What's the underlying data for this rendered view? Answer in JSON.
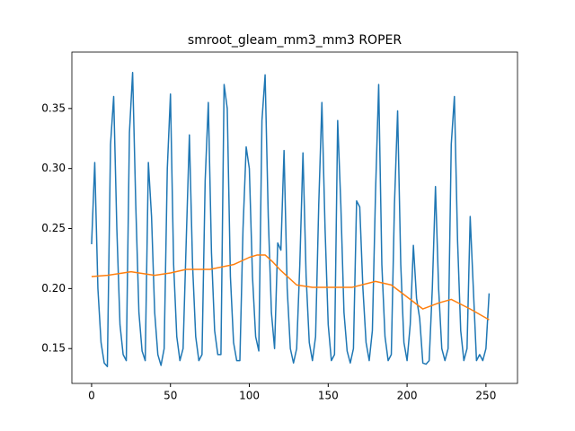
{
  "chart_data": {
    "type": "line",
    "title": "smroot_gleam_mm3_mm3 ROPER",
    "xlim": [
      -12.5,
      270
    ],
    "ylim": [
      0.121,
      0.397
    ],
    "xticks": [
      0,
      50,
      100,
      150,
      200,
      250
    ],
    "yticks": [
      0.15,
      {
        "value": 0.2,
        "label": "0.20"
      },
      0.25,
      {
        "value": 0.3,
        "label": "0.30"
      },
      0.35
    ],
    "series": [
      {
        "color": "#1f77b4",
        "x": [
          0,
          2,
          4,
          6,
          8,
          10,
          12,
          14,
          16,
          18,
          20,
          22,
          24,
          26,
          28,
          30,
          32,
          34,
          36,
          38,
          40,
          42,
          44,
          46,
          48,
          50,
          52,
          54,
          56,
          58,
          60,
          62,
          64,
          66,
          68,
          70,
          72,
          74,
          76,
          78,
          80,
          82,
          84,
          86,
          88,
          90,
          92,
          94,
          96,
          98,
          100,
          102,
          104,
          106,
          108,
          110,
          112,
          114,
          116,
          118,
          120,
          122,
          124,
          126,
          128,
          130,
          132,
          134,
          136,
          138,
          140,
          142,
          144,
          146,
          148,
          150,
          152,
          154,
          156,
          158,
          160,
          162,
          164,
          166,
          168,
          170,
          172,
          174,
          176,
          178,
          180,
          182,
          184,
          186,
          188,
          190,
          192,
          194,
          196,
          198,
          200,
          202,
          204,
          206,
          208,
          210,
          212,
          214,
          216,
          218,
          220,
          222,
          224,
          226,
          228,
          230,
          232,
          234,
          236,
          238,
          240,
          242,
          244,
          246,
          248,
          250,
          252
        ],
        "values": [
          0.237,
          0.305,
          0.2,
          0.155,
          0.138,
          0.135,
          0.32,
          0.36,
          0.25,
          0.17,
          0.145,
          0.14,
          0.33,
          0.38,
          0.27,
          0.18,
          0.148,
          0.14,
          0.305,
          0.26,
          0.18,
          0.145,
          0.136,
          0.15,
          0.3,
          0.362,
          0.22,
          0.16,
          0.14,
          0.15,
          0.24,
          0.328,
          0.22,
          0.16,
          0.14,
          0.145,
          0.29,
          0.355,
          0.23,
          0.165,
          0.145,
          0.145,
          0.37,
          0.35,
          0.21,
          0.155,
          0.14,
          0.14,
          0.25,
          0.318,
          0.3,
          0.21,
          0.16,
          0.148,
          0.34,
          0.378,
          0.26,
          0.18,
          0.15,
          0.238,
          0.232,
          0.315,
          0.2,
          0.15,
          0.138,
          0.15,
          0.22,
          0.313,
          0.21,
          0.155,
          0.14,
          0.16,
          0.27,
          0.355,
          0.25,
          0.17,
          0.14,
          0.145,
          0.34,
          0.27,
          0.18,
          0.148,
          0.138,
          0.15,
          0.273,
          0.268,
          0.2,
          0.155,
          0.14,
          0.165,
          0.28,
          0.37,
          0.22,
          0.16,
          0.14,
          0.145,
          0.27,
          0.348,
          0.22,
          0.155,
          0.14,
          0.17,
          0.236,
          0.192,
          0.175,
          0.138,
          0.137,
          0.14,
          0.2,
          0.285,
          0.2,
          0.15,
          0.14,
          0.15,
          0.32,
          0.36,
          0.24,
          0.165,
          0.14,
          0.15,
          0.26,
          0.2,
          0.14,
          0.145,
          0.14,
          0.15,
          0.196
        ]
      },
      {
        "color": "#ff7f0e",
        "x": [
          0,
          10,
          20,
          25,
          30,
          40,
          50,
          60,
          75,
          90,
          100,
          105,
          110,
          115,
          120,
          130,
          140,
          165,
          180,
          190,
          200,
          210,
          220,
          228,
          240,
          252
        ],
        "values": [
          0.21,
          0.211,
          0.213,
          0.214,
          0.213,
          0.211,
          0.213,
          0.216,
          0.216,
          0.22,
          0.226,
          0.228,
          0.228,
          0.222,
          0.215,
          0.203,
          0.201,
          0.201,
          0.206,
          0.203,
          0.193,
          0.183,
          0.188,
          0.191,
          0.183,
          0.174
        ]
      }
    ]
  }
}
